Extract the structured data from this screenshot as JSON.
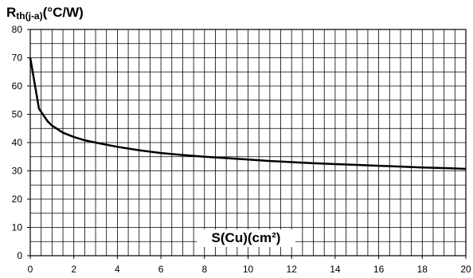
{
  "chart_data": {
    "type": "line",
    "ylabel_main": "R",
    "ylabel_sub": "th(j-a)",
    "ylabel_unit": "(°C/W)",
    "xlabel": "S(Cu)(cm²)",
    "xlim": [
      0,
      20
    ],
    "ylim": [
      0,
      80
    ],
    "x_ticks": [
      0,
      2,
      4,
      6,
      8,
      10,
      12,
      14,
      16,
      18,
      20
    ],
    "y_ticks": [
      0,
      10,
      20,
      30,
      40,
      50,
      60,
      70,
      80
    ],
    "grid": true,
    "grid_x_step": 0.5,
    "grid_y_step": 5,
    "series": [
      {
        "x": [
          0,
          0.4,
          0.8,
          1,
          1.5,
          2,
          2.5,
          3,
          4,
          5,
          6,
          7,
          8,
          9,
          10,
          11,
          12,
          13,
          14,
          15,
          16,
          17,
          18,
          19,
          20
        ],
        "values": [
          70,
          52,
          47.5,
          46,
          43.5,
          42,
          40.8,
          40,
          38.5,
          37.3,
          36.3,
          35.6,
          35,
          34.5,
          34,
          33.5,
          33.1,
          32.7,
          32.4,
          32.1,
          31.8,
          31.5,
          31.2,
          31,
          30.7
        ]
      }
    ]
  }
}
